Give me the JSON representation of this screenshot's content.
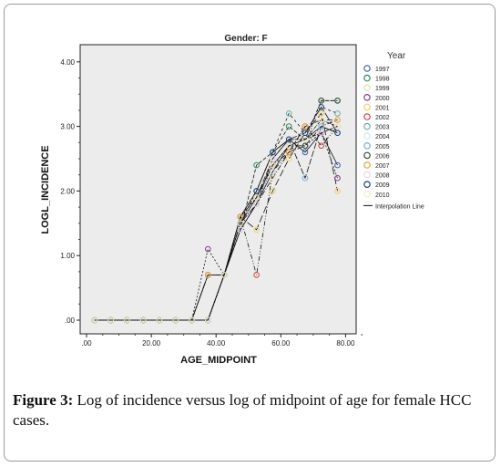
{
  "chart_data": {
    "type": "line",
    "title": "Gender: F",
    "xlabel": "AGE_MIDPOINT",
    "ylabel": "LOGL_INCIDENCE",
    "xlim": [
      0,
      90
    ],
    "ylim": [
      0,
      4
    ],
    "x_ticks": [
      ".00",
      "20.00",
      "40.00",
      "60.00",
      "80.00"
    ],
    "y_ticks": [
      ".00",
      "1.00",
      "2.00",
      "3.00",
      "4.00"
    ],
    "legend_title": "Year",
    "legend_position": "right",
    "interpolation_label": "Interpolation Line",
    "grid": false,
    "series": [
      {
        "name": "1997",
        "color": "#3a5fa8",
        "x": [
          2.5,
          7.5,
          12.5,
          17.5,
          22.5,
          27.5,
          32.5,
          37.5,
          42.5,
          47.5,
          52.5,
          57.5,
          62.5,
          67.5,
          72.5,
          77.5
        ],
        "y": [
          0,
          0,
          0,
          0,
          0,
          0,
          0,
          0.7,
          0.7,
          1.6,
          2.0,
          2.6,
          2.8,
          2.6,
          2.9,
          2.4
        ]
      },
      {
        "name": "1998",
        "color": "#2e8b57",
        "x": [
          2.5,
          7.5,
          12.5,
          17.5,
          22.5,
          27.5,
          32.5,
          37.5,
          42.5,
          47.5,
          52.5,
          57.5,
          62.5,
          67.5,
          72.5,
          77.5
        ],
        "y": [
          0,
          0,
          0,
          0,
          0,
          0,
          0,
          0,
          0.7,
          1.4,
          2.4,
          2.6,
          3.0,
          2.8,
          3.4,
          3.4
        ]
      },
      {
        "name": "1999",
        "color": "#e8e0a8",
        "x": [
          2.5,
          7.5,
          12.5,
          17.5,
          22.5,
          27.5,
          32.5,
          37.5,
          42.5,
          47.5,
          52.5,
          57.5,
          62.5,
          67.5,
          72.5,
          77.5
        ],
        "y": [
          0,
          0,
          0,
          0,
          0,
          0,
          0,
          0,
          0.7,
          1.5,
          1.8,
          2.2,
          2.6,
          2.7,
          3.0,
          3.1
        ]
      },
      {
        "name": "2000",
        "color": "#8b3a8b",
        "x": [
          2.5,
          7.5,
          12.5,
          17.5,
          22.5,
          27.5,
          32.5,
          37.5,
          42.5,
          47.5,
          52.5,
          57.5,
          62.5,
          67.5,
          72.5,
          77.5
        ],
        "y": [
          0,
          0,
          0,
          0,
          0,
          0,
          0,
          1.1,
          0.7,
          1.6,
          1.9,
          2.4,
          2.7,
          2.7,
          2.9,
          2.2
        ]
      },
      {
        "name": "2001",
        "color": "#f0d060",
        "x": [
          2.5,
          7.5,
          12.5,
          17.5,
          22.5,
          27.5,
          32.5,
          37.5,
          42.5,
          47.5,
          52.5,
          57.5,
          62.5,
          67.5,
          72.5,
          77.5
        ],
        "y": [
          0,
          0,
          0,
          0,
          0,
          0,
          0,
          0.7,
          0.7,
          1.6,
          1.4,
          2.0,
          2.5,
          2.9,
          3.2,
          2.0
        ]
      },
      {
        "name": "2002",
        "color": "#d04040",
        "x": [
          2.5,
          7.5,
          12.5,
          17.5,
          22.5,
          27.5,
          32.5,
          37.5,
          42.5,
          47.5,
          52.5,
          57.5,
          62.5,
          67.5,
          72.5,
          77.5
        ],
        "y": [
          0,
          0,
          0,
          0,
          0,
          0,
          0,
          0.7,
          0.7,
          1.6,
          0.7,
          2.3,
          2.6,
          3.0,
          2.7,
          3.0
        ]
      },
      {
        "name": "2003",
        "color": "#5fb0a8",
        "x": [
          2.5,
          7.5,
          12.5,
          17.5,
          22.5,
          27.5,
          32.5,
          37.5,
          42.5,
          47.5,
          52.5,
          57.5,
          62.5,
          67.5,
          72.5,
          77.5
        ],
        "y": [
          0,
          0,
          0,
          0,
          0,
          0,
          0,
          0,
          0.7,
          1.6,
          2.0,
          2.6,
          3.2,
          2.9,
          3.3,
          3.2
        ]
      },
      {
        "name": "2004",
        "color": "#cfe8f0",
        "x": [
          2.5,
          7.5,
          12.5,
          17.5,
          22.5,
          27.5,
          32.5,
          37.5,
          42.5,
          47.5,
          52.5,
          57.5,
          62.5,
          67.5,
          72.5,
          77.5
        ],
        "y": [
          0,
          0,
          0,
          0,
          0,
          0,
          0,
          0,
          0.7,
          1.4,
          1.8,
          2.3,
          2.7,
          2.8,
          3.0,
          2.9
        ]
      },
      {
        "name": "2005",
        "color": "#7aaedb",
        "x": [
          2.5,
          7.5,
          12.5,
          17.5,
          22.5,
          27.5,
          32.5,
          37.5,
          42.5,
          47.5,
          52.5,
          57.5,
          62.5,
          67.5,
          72.5,
          77.5
        ],
        "y": [
          0,
          0,
          0,
          0,
          0,
          0,
          0,
          0,
          0.7,
          1.5,
          1.9,
          2.5,
          2.8,
          2.2,
          3.0,
          2.9
        ]
      },
      {
        "name": "2006",
        "color": "#2f4f2f",
        "x": [
          2.5,
          7.5,
          12.5,
          17.5,
          22.5,
          27.5,
          32.5,
          37.5,
          42.5,
          47.5,
          52.5,
          57.5,
          62.5,
          67.5,
          72.5,
          77.5
        ],
        "y": [
          0,
          0,
          0,
          0,
          0,
          0,
          0,
          0,
          0.7,
          1.5,
          1.8,
          2.4,
          2.7,
          2.7,
          3.4,
          3.4
        ]
      },
      {
        "name": "2007",
        "color": "#e8a030",
        "x": [
          2.5,
          7.5,
          12.5,
          17.5,
          22.5,
          27.5,
          32.5,
          37.5,
          42.5,
          47.5,
          52.5,
          57.5,
          62.5,
          67.5,
          72.5,
          77.5
        ],
        "y": [
          0,
          0,
          0,
          0,
          0,
          0,
          0,
          0.7,
          0.7,
          1.6,
          1.9,
          2.4,
          2.6,
          3.0,
          3.1,
          3.1
        ]
      },
      {
        "name": "2008",
        "color": "#f0d0e8",
        "x": [
          2.5,
          7.5,
          12.5,
          17.5,
          22.5,
          27.5,
          32.5,
          37.5,
          42.5,
          47.5,
          52.5,
          57.5,
          62.5,
          67.5,
          72.5,
          77.5
        ],
        "y": [
          0,
          0,
          0,
          0,
          0,
          0,
          0,
          0,
          0.7,
          1.4,
          1.8,
          2.5,
          2.8,
          2.8,
          2.9,
          3.0
        ]
      },
      {
        "name": "2009",
        "color": "#1f3f7a",
        "x": [
          2.5,
          7.5,
          12.5,
          17.5,
          22.5,
          27.5,
          32.5,
          37.5,
          42.5,
          47.5,
          52.5,
          57.5,
          62.5,
          67.5,
          72.5,
          77.5
        ],
        "y": [
          0,
          0,
          0,
          0,
          0,
          0,
          0,
          0,
          0.7,
          1.5,
          2.0,
          2.6,
          2.8,
          2.9,
          3.3,
          2.9
        ]
      },
      {
        "name": "2010",
        "color": "#f5f0c0",
        "x": [
          2.5,
          7.5,
          12.5,
          17.5,
          22.5,
          27.5,
          32.5,
          37.5,
          42.5,
          47.5,
          52.5,
          57.5,
          62.5,
          67.5,
          72.5,
          77.5
        ],
        "y": [
          0,
          0,
          0,
          0,
          0,
          0,
          0,
          0,
          0.7,
          1.5,
          1.9,
          2.4,
          2.7,
          2.8,
          3.1,
          3.0
        ]
      }
    ]
  },
  "caption": {
    "label": "Figure 3:",
    "text": " Log of incidence versus log of midpoint of age for female HCC cases."
  }
}
